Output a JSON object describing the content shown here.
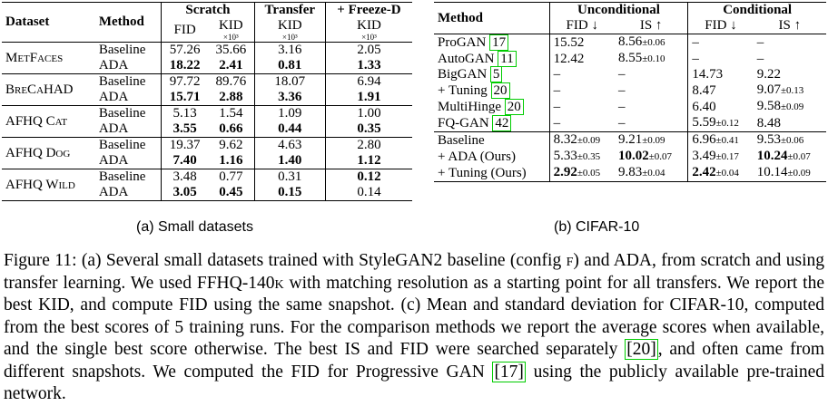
{
  "tableA": {
    "head": {
      "dataset": "Dataset",
      "method": "Method",
      "scratch": "Scratch",
      "transfer": "Transfer",
      "freezed": "+ Freeze-D",
      "fid": "FID",
      "kid": "KID",
      "kid_scale": "×10³"
    },
    "rows": [
      {
        "dataset": "MetFaces",
        "method": "Baseline",
        "fid": "57.26",
        "kid": "35.66",
        "transfer": "3.16",
        "freezed": "2.05"
      },
      {
        "dataset": "",
        "method": "ADA",
        "fid": "18.22",
        "kid": "2.41",
        "transfer": "0.81",
        "freezed": "1.33"
      },
      {
        "dataset": "BreCaHAD",
        "method": "Baseline",
        "fid": "97.72",
        "kid": "89.76",
        "transfer": "18.07",
        "freezed": "6.94"
      },
      {
        "dataset": "",
        "method": "ADA",
        "fid": "15.71",
        "kid": "2.88",
        "transfer": "3.36",
        "freezed": "1.91"
      },
      {
        "dataset": "AFHQ Cat",
        "method": "Baseline",
        "fid": "5.13",
        "kid": "1.54",
        "transfer": "1.09",
        "freezed": "1.00"
      },
      {
        "dataset": "",
        "method": "ADA",
        "fid": "3.55",
        "kid": "0.66",
        "transfer": "0.44",
        "freezed": "0.35"
      },
      {
        "dataset": "AFHQ Dog",
        "method": "Baseline",
        "fid": "19.37",
        "kid": "9.62",
        "transfer": "4.63",
        "freezed": "2.80"
      },
      {
        "dataset": "",
        "method": "ADA",
        "fid": "7.40",
        "kid": "1.16",
        "transfer": "1.40",
        "freezed": "1.12"
      },
      {
        "dataset": "AFHQ Wild",
        "method": "Baseline",
        "fid": "3.48",
        "kid": "0.77",
        "transfer": "0.31",
        "freezed": "0.12"
      },
      {
        "dataset": "",
        "method": "ADA",
        "fid": "3.05",
        "kid": "0.45",
        "transfer": "0.15",
        "freezed": "0.14"
      }
    ],
    "caption": "(a) Small datasets"
  },
  "tableB": {
    "head": {
      "method": "Method",
      "unconditional": "Unconditional",
      "conditional": "Conditional",
      "fid": "FID ↓",
      "is": "IS ↑"
    },
    "rows": [
      {
        "method": "ProGAN",
        "ref": "17",
        "ufid": "15.52",
        "uis": "8.56",
        "uis_pm": "±0.06",
        "cfid": "–",
        "cis": "–"
      },
      {
        "method": "AutoGAN",
        "ref": "11",
        "ufid": "12.42",
        "uis": "8.55",
        "uis_pm": "±0.10",
        "cfid": "–",
        "cis": "–"
      },
      {
        "method": "BigGAN",
        "ref": "5",
        "ufid": "–",
        "uis": "–",
        "cfid": "14.73",
        "cis": "9.22"
      },
      {
        "method": "+ Tuning",
        "ref": "20",
        "ufid": "–",
        "uis": "–",
        "cfid": "8.47",
        "cis": "9.07",
        "cis_pm": "±0.13"
      },
      {
        "method": "MultiHinge",
        "ref": "20",
        "ufid": "–",
        "uis": "–",
        "cfid": "6.40",
        "cis": "9.58",
        "cis_pm": "±0.09"
      },
      {
        "method": "FQ-GAN",
        "ref": "42",
        "ufid": "–",
        "uis": "–",
        "cfid": "5.59",
        "cfid_pm": "±0.12",
        "cis": "8.48"
      },
      {
        "method": "Baseline",
        "ufid": "8.32",
        "ufid_pm": "±0.09",
        "uis": "9.21",
        "uis_pm": "±0.09",
        "cfid": "6.96",
        "cfid_pm": "±0.41",
        "cis": "9.53",
        "cis_pm": "±0.06"
      },
      {
        "method": "+ ADA (Ours)",
        "ufid": "5.33",
        "ufid_pm": "±0.35",
        "uis": "10.02",
        "uis_pm": "±0.07",
        "cfid": "3.49",
        "cfid_pm": "±0.17",
        "cis": "10.24",
        "cis_pm": "±0.07"
      },
      {
        "method": "+ Tuning (Ours)",
        "ufid": "2.92",
        "ufid_pm": "±0.05",
        "uis": "9.83",
        "uis_pm": "±0.04",
        "cfid": "2.42",
        "cfid_pm": "±0.04",
        "cis": "10.14",
        "cis_pm": "±0.09"
      }
    ],
    "caption": "(b) CIFAR-10"
  },
  "figure_caption": {
    "p1": "Figure 11: (a) Several small datasets trained with StyleGAN2 baseline (config ",
    "config": "f",
    "p2": ") and ADA, from scratch and using transfer learning. We used FFHQ-140",
    "k": "k",
    "p3": " with matching resolution as a starting point for all transfers. We report the best KID, and compute FID using the same snapshot. (c) Mean and standard deviation for CIFAR-10, computed from the best scores of 5 training runs. For the comparison methods we report the average scores when available, and the single best score otherwise. The best IS and FID were searched separately ",
    "ref1": "[20]",
    "p4": ", and often came from different snapshots. We computed the FID for Progressive GAN ",
    "ref2": "[17]",
    "p5": " using the publicly available pre-trained network."
  }
}
